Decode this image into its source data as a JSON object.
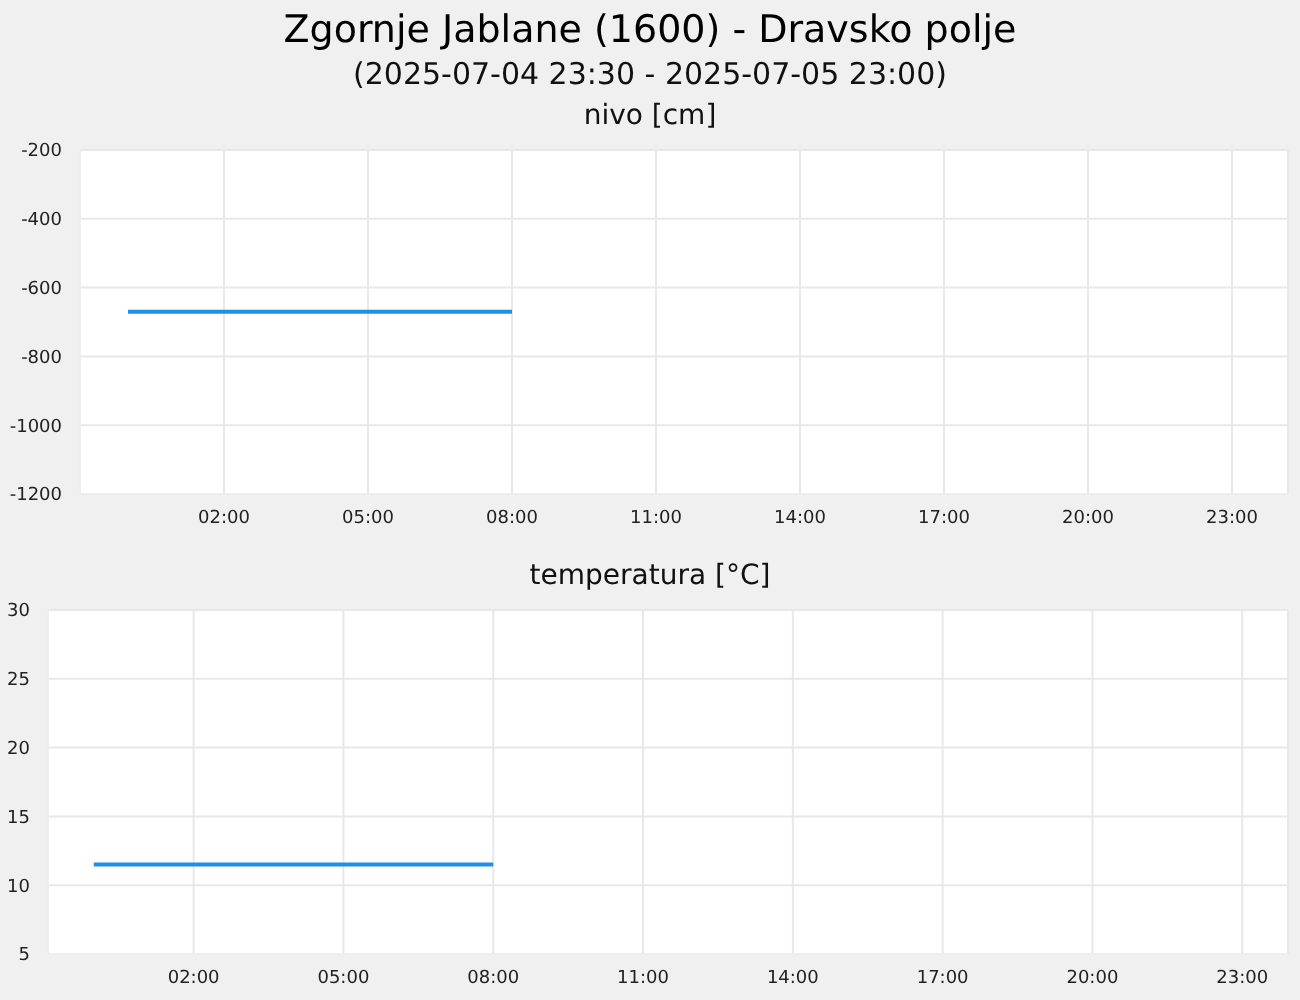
{
  "chart_data": [
    {
      "type": "other",
      "title": "Zgornje Jablane (1600) - Dravsko polje",
      "subtitle": "(2025-07-04 23:30 - 2025-07-05 23:00)"
    },
    {
      "type": "line",
      "title": "nivo [cm]",
      "x": [
        "2025-07-05T00:00",
        "2025-07-05T01:00",
        "2025-07-05T02:00",
        "2025-07-05T03:00",
        "2025-07-05T04:00",
        "2025-07-05T05:00",
        "2025-07-05T06:00",
        "2025-07-05T07:00",
        "2025-07-05T08:00"
      ],
      "series": [
        {
          "color": "#1e90e8",
          "values": [
            -670,
            -670,
            -670,
            -670,
            -670,
            -670,
            -670,
            -670,
            -670
          ]
        }
      ],
      "xlim": [
        "2025-07-04T23:00",
        "2025-07-06T00:10"
      ],
      "xticks": [
        {
          "value": "2025-07-05T02:00",
          "label": "02:00"
        },
        {
          "value": "2025-07-05T05:00",
          "label": "05:00"
        },
        {
          "value": "2025-07-05T08:00",
          "label": "08:00"
        },
        {
          "value": "2025-07-05T11:00",
          "label": "11:00"
        },
        {
          "value": "2025-07-05T14:00",
          "label": "14:00"
        },
        {
          "value": "2025-07-05T17:00",
          "label": "17:00"
        },
        {
          "value": "2025-07-05T20:00",
          "label": "20:00"
        },
        {
          "value": "2025-07-05T23:00",
          "label": "23:00"
        }
      ],
      "ylim": [
        -1200,
        -200
      ],
      "yticks": [
        -1200,
        -1000,
        -800,
        -600,
        -400,
        -200
      ],
      "grid": true,
      "legend": false,
      "marker": "none",
      "line_style": "solid"
    },
    {
      "type": "line",
      "title": "temperatura [°C]",
      "x": [
        "2025-07-05T00:00",
        "2025-07-05T01:00",
        "2025-07-05T02:00",
        "2025-07-05T03:00",
        "2025-07-05T04:00",
        "2025-07-05T05:00",
        "2025-07-05T06:00",
        "2025-07-05T07:00",
        "2025-07-05T08:00"
      ],
      "series": [
        {
          "color": "#1e90e8",
          "values": [
            11.5,
            11.5,
            11.5,
            11.5,
            11.5,
            11.5,
            11.5,
            11.5,
            11.5
          ]
        }
      ],
      "xlim": [
        "2025-07-04T23:05",
        "2025-07-05T23:55"
      ],
      "xticks": [
        {
          "value": "2025-07-05T02:00",
          "label": "02:00"
        },
        {
          "value": "2025-07-05T05:00",
          "label": "05:00"
        },
        {
          "value": "2025-07-05T08:00",
          "label": "08:00"
        },
        {
          "value": "2025-07-05T11:00",
          "label": "11:00"
        },
        {
          "value": "2025-07-05T14:00",
          "label": "14:00"
        },
        {
          "value": "2025-07-05T17:00",
          "label": "17:00"
        },
        {
          "value": "2025-07-05T20:00",
          "label": "20:00"
        },
        {
          "value": "2025-07-05T23:00",
          "label": "23:00"
        }
      ],
      "ylim": [
        5,
        30
      ],
      "yticks": [
        5,
        10,
        15,
        20,
        25,
        30
      ],
      "grid": true,
      "legend": false,
      "marker": "none",
      "line_style": "solid"
    }
  ]
}
